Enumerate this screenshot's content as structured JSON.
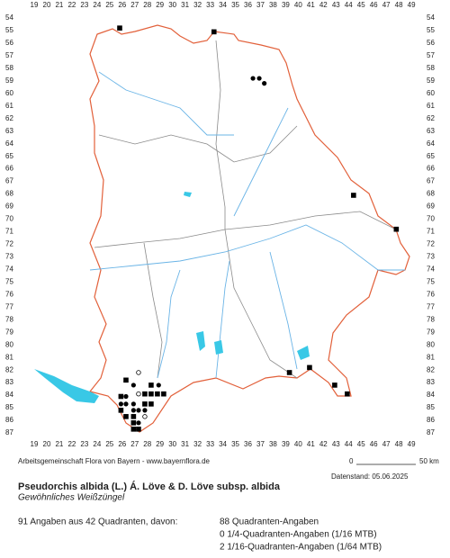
{
  "map": {
    "columns": [
      19,
      20,
      21,
      22,
      23,
      24,
      25,
      26,
      27,
      28,
      29,
      30,
      31,
      32,
      33,
      34,
      35,
      36,
      37,
      38,
      39,
      40,
      41,
      42,
      43,
      44,
      45,
      46,
      47,
      48,
      49
    ],
    "rows": [
      54,
      55,
      56,
      57,
      58,
      59,
      60,
      61,
      62,
      63,
      64,
      65,
      66,
      67,
      68,
      69,
      70,
      71,
      72,
      73,
      74,
      75,
      76,
      77,
      78,
      79,
      80,
      81,
      82,
      83,
      84,
      85,
      86,
      87
    ],
    "points": [
      {
        "x": 25.8,
        "y": 54.8,
        "symbol": "square"
      },
      {
        "x": 33.3,
        "y": 55.1,
        "symbol": "square"
      },
      {
        "x": 36.4,
        "y": 58.8,
        "symbol": "dot"
      },
      {
        "x": 36.9,
        "y": 58.8,
        "symbol": "dot"
      },
      {
        "x": 37.3,
        "y": 59.2,
        "symbol": "dot"
      },
      {
        "x": 44.4,
        "y": 68.1,
        "symbol": "square"
      },
      {
        "x": 47.8,
        "y": 70.8,
        "symbol": "square"
      },
      {
        "x": 39.3,
        "y": 82.2,
        "symbol": "square"
      },
      {
        "x": 40.9,
        "y": 81.8,
        "symbol": "square"
      },
      {
        "x": 42.9,
        "y": 83.2,
        "symbol": "square"
      },
      {
        "x": 43.9,
        "y": 83.9,
        "symbol": "square"
      },
      {
        "x": 26.3,
        "y": 82.8,
        "symbol": "square"
      },
      {
        "x": 27.3,
        "y": 82.2,
        "symbol": "circle"
      },
      {
        "x": 26.9,
        "y": 83.2,
        "symbol": "dot"
      },
      {
        "x": 28.3,
        "y": 83.2,
        "symbol": "square"
      },
      {
        "x": 28.9,
        "y": 83.2,
        "symbol": "dot"
      },
      {
        "x": 27.3,
        "y": 83.9,
        "symbol": "circle"
      },
      {
        "x": 27.8,
        "y": 83.9,
        "symbol": "square"
      },
      {
        "x": 28.3,
        "y": 83.9,
        "symbol": "square"
      },
      {
        "x": 28.8,
        "y": 83.9,
        "symbol": "square"
      },
      {
        "x": 29.3,
        "y": 83.9,
        "symbol": "square"
      },
      {
        "x": 25.9,
        "y": 84.1,
        "symbol": "square"
      },
      {
        "x": 26.3,
        "y": 84.1,
        "symbol": "dot"
      },
      {
        "x": 25.9,
        "y": 84.7,
        "symbol": "dot"
      },
      {
        "x": 26.3,
        "y": 84.7,
        "symbol": "dot"
      },
      {
        "x": 26.9,
        "y": 84.7,
        "symbol": "dot"
      },
      {
        "x": 27.8,
        "y": 84.7,
        "symbol": "square"
      },
      {
        "x": 28.3,
        "y": 84.7,
        "symbol": "square"
      },
      {
        "x": 25.9,
        "y": 85.2,
        "symbol": "square"
      },
      {
        "x": 26.9,
        "y": 85.2,
        "symbol": "dot"
      },
      {
        "x": 27.3,
        "y": 85.2,
        "symbol": "dot"
      },
      {
        "x": 27.8,
        "y": 85.2,
        "symbol": "dot"
      },
      {
        "x": 26.3,
        "y": 85.7,
        "symbol": "square"
      },
      {
        "x": 26.9,
        "y": 85.7,
        "symbol": "square"
      },
      {
        "x": 27.8,
        "y": 85.7,
        "symbol": "circle"
      },
      {
        "x": 26.9,
        "y": 86.2,
        "symbol": "square"
      },
      {
        "x": 27.3,
        "y": 86.2,
        "symbol": "dot"
      },
      {
        "x": 26.9,
        "y": 86.7,
        "symbol": "square"
      },
      {
        "x": 27.3,
        "y": 86.7,
        "symbol": "square"
      }
    ]
  },
  "footer": {
    "credit": "Arbeitsgemeinschaft Flora von Bayern - www.bayernflora.de",
    "scale_start": "0",
    "scale_end": "50 km",
    "date": "Datenstand: 05.06.2025",
    "title": "Pseudorchis albida (L.) Á. Löve & D. Löve subsp. albida",
    "subtitle": "Gewöhnliches Weißzüngel",
    "summary": "91 Angaben aus 42 Quadranten, davon:",
    "stats": [
      "88 Quadranten-Angaben",
      "0 1/4-Quadranten-Angaben (1/16 MTB)",
      "2 1/16-Quadranten-Angaben (1/64 MTB)"
    ]
  }
}
